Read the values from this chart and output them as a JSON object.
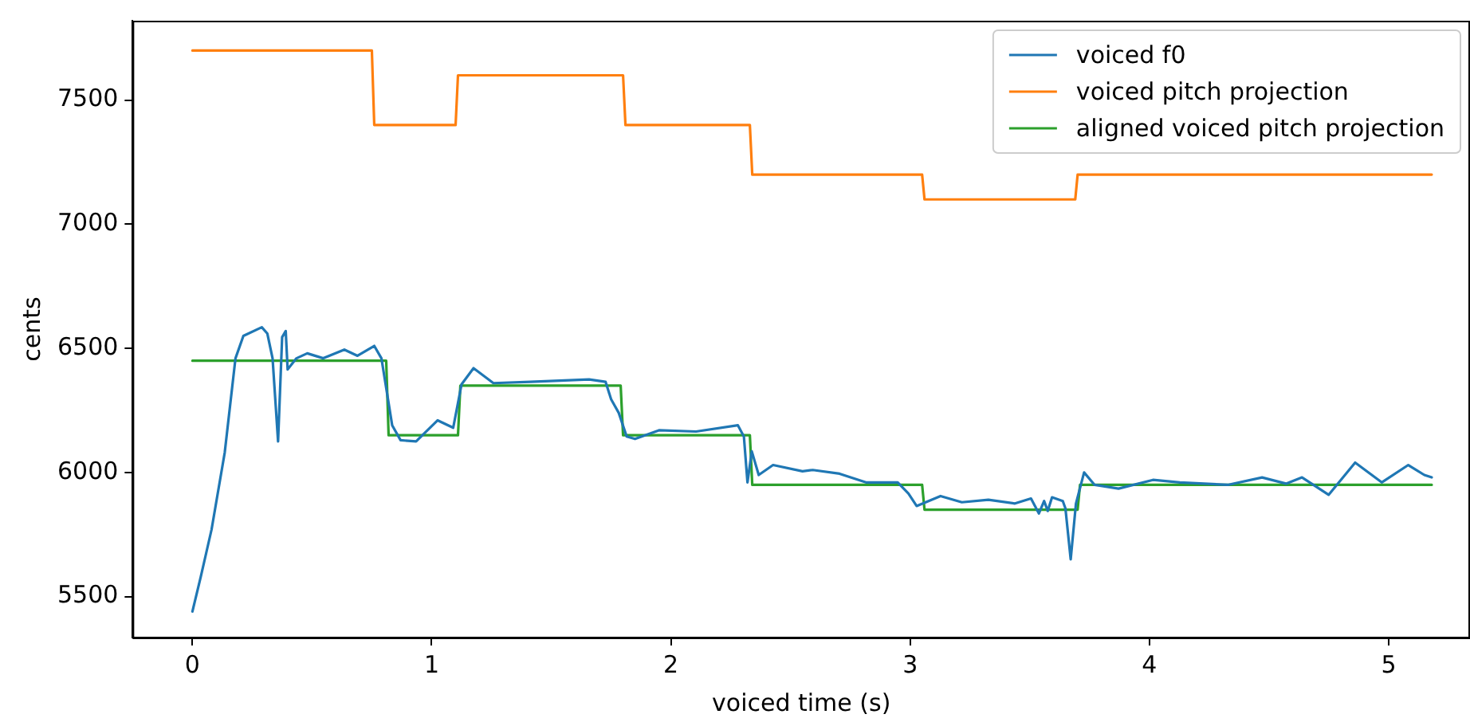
{
  "chart_data": {
    "type": "line",
    "xlabel": "voiced time (s)",
    "ylabel": "cents",
    "xlim": [
      -0.25,
      5.34
    ],
    "ylim": [
      5335,
      7820
    ],
    "xticks": [
      0,
      1,
      2,
      3,
      4,
      5
    ],
    "yticks": [
      5500,
      6000,
      6500,
      7000,
      7500
    ],
    "grid": false,
    "legend": "top right",
    "marker": "none",
    "line_style": "solid",
    "series": [
      {
        "name": "voiced f0",
        "color": "#1f77b4",
        "x": [
          0,
          0.035,
          0.08,
          0.135,
          0.18,
          0.213,
          0.29,
          0.313,
          0.335,
          0.358,
          0.375,
          0.39,
          0.398,
          0.435,
          0.48,
          0.547,
          0.635,
          0.69,
          0.76,
          0.79,
          0.835,
          0.87,
          0.935,
          1.025,
          1.09,
          1.125,
          1.175,
          1.258,
          1.413,
          1.658,
          1.727,
          1.75,
          1.782,
          1.815,
          1.85,
          1.95,
          2.105,
          2.28,
          2.305,
          2.32,
          2.338,
          2.367,
          2.427,
          2.55,
          2.593,
          2.705,
          2.815,
          2.948,
          2.993,
          3.027,
          3.127,
          3.216,
          3.327,
          3.438,
          3.505,
          3.538,
          3.56,
          3.575,
          3.593,
          3.638,
          3.649,
          3.671,
          3.693,
          3.727,
          3.771,
          3.871,
          4.015,
          4.127,
          4.327,
          4.471,
          4.571,
          4.638,
          4.749,
          4.86,
          4.971,
          5.082,
          5.149,
          5.18
        ],
        "values": [
          5440,
          5580,
          5770,
          6080,
          6460,
          6550,
          6585,
          6560,
          6460,
          6125,
          6545,
          6570,
          6415,
          6460,
          6480,
          6460,
          6495,
          6470,
          6510,
          6460,
          6190,
          6130,
          6125,
          6210,
          6180,
          6355,
          6420,
          6360,
          6365,
          6375,
          6365,
          6295,
          6240,
          6145,
          6135,
          6170,
          6165,
          6190,
          6145,
          5960,
          6085,
          5990,
          6030,
          6005,
          6010,
          5995,
          5960,
          5960,
          5915,
          5865,
          5905,
          5880,
          5890,
          5875,
          5895,
          5835,
          5885,
          5845,
          5900,
          5885,
          5855,
          5650,
          5875,
          6000,
          5950,
          5935,
          5970,
          5960,
          5950,
          5980,
          5955,
          5980,
          5910,
          6040,
          5960,
          6030,
          5990,
          5980
        ]
      },
      {
        "name": "voiced pitch projection",
        "color": "#ff7f0e",
        "x": [
          0,
          0.75,
          0.76,
          1.1,
          1.11,
          1.8,
          1.81,
          2.33,
          2.34,
          3.05,
          3.06,
          3.69,
          3.7,
          5.18
        ],
        "values": [
          7700,
          7700,
          7400,
          7400,
          7600,
          7600,
          7400,
          7400,
          7200,
          7200,
          7100,
          7100,
          7200,
          7200
        ]
      },
      {
        "name": "aligned voiced pitch projection",
        "color": "#2ca02c",
        "x": [
          0,
          0.81,
          0.82,
          1.11,
          1.12,
          1.79,
          1.8,
          2.33,
          2.34,
          3.05,
          3.06,
          3.7,
          3.71,
          5.18
        ],
        "values": [
          6450,
          6450,
          6150,
          6150,
          6350,
          6350,
          6150,
          6150,
          5950,
          5950,
          5850,
          5850,
          5950,
          5950
        ]
      }
    ]
  }
}
